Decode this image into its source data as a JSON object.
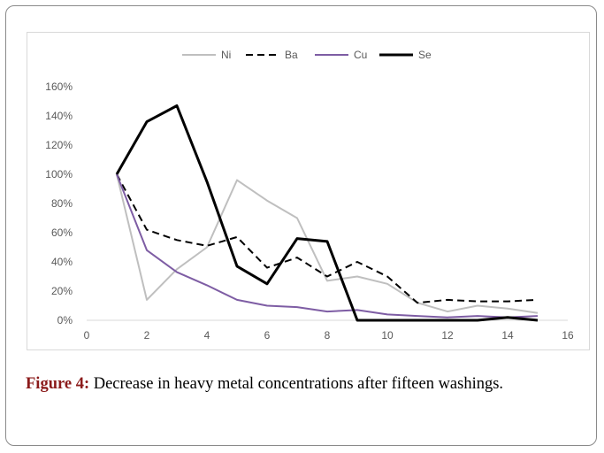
{
  "chart_data": {
    "type": "line",
    "x": [
      1,
      2,
      3,
      4,
      5,
      6,
      7,
      8,
      9,
      10,
      11,
      12,
      13,
      14,
      15
    ],
    "xlim": [
      0,
      16
    ],
    "xticks": [
      0,
      2,
      4,
      6,
      8,
      10,
      12,
      14,
      16
    ],
    "ylim": [
      0,
      160
    ],
    "yticks": [
      0,
      20,
      40,
      60,
      80,
      100,
      120,
      140,
      160
    ],
    "ytick_suffix": "%",
    "grid": false,
    "legend_position": "top",
    "series": [
      {
        "name": "Ni",
        "color": "#bfbfbf",
        "dash": "solid",
        "values": [
          100,
          14,
          35,
          50,
          96,
          82,
          70,
          27,
          30,
          25,
          12,
          6,
          10,
          8,
          5
        ]
      },
      {
        "name": "Ba",
        "color": "#000000",
        "dash": "dashed",
        "values": [
          100,
          62,
          55,
          51,
          57,
          36,
          43,
          30,
          40,
          30,
          12,
          14,
          13,
          13,
          14
        ]
      },
      {
        "name": "Cu",
        "color": "#7e5da4",
        "dash": "solid",
        "values": [
          100,
          48,
          33,
          24,
          14,
          10,
          9,
          6,
          7,
          4,
          3,
          2,
          3,
          2,
          3
        ]
      },
      {
        "name": "Se",
        "color": "#000000",
        "dash": "solid",
        "values": [
          100,
          136,
          147,
          95,
          37,
          25,
          56,
          54,
          0,
          0,
          0,
          0,
          0,
          2,
          0
        ]
      }
    ]
  },
  "caption": {
    "label": "Figure 4:",
    "text": "Decrease in heavy metal concentrations after fifteen washings."
  }
}
